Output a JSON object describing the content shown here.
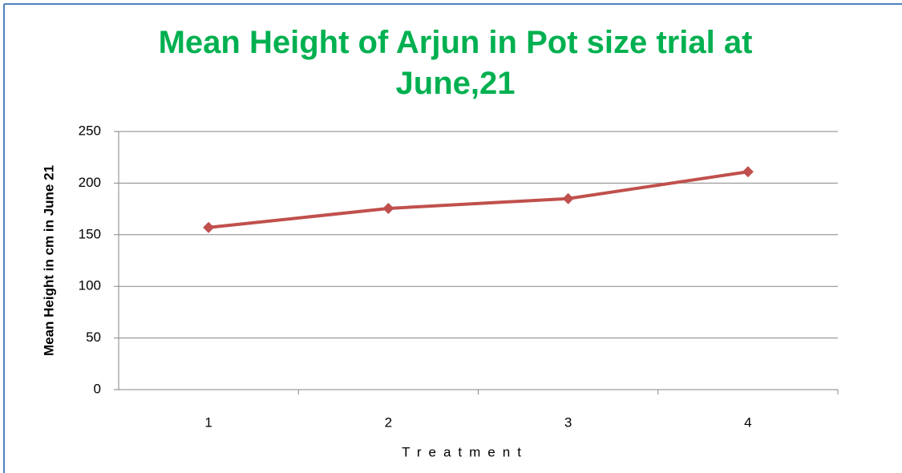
{
  "chart_data": {
    "type": "line",
    "title": "Mean Height of Arjun in Pot size trial at June,21",
    "x_label": "Treatment",
    "y_label": "Mean Height in cm in June 21",
    "categories": [
      "1",
      "2",
      "3",
      "4"
    ],
    "series": [
      {
        "name": "Mean Height",
        "color": "#c0504d",
        "values": [
          157,
          175.5,
          185,
          211
        ]
      }
    ],
    "ylim": [
      0,
      250
    ],
    "yticks": [
      0,
      50,
      100,
      150,
      200,
      250
    ],
    "grid": true
  }
}
